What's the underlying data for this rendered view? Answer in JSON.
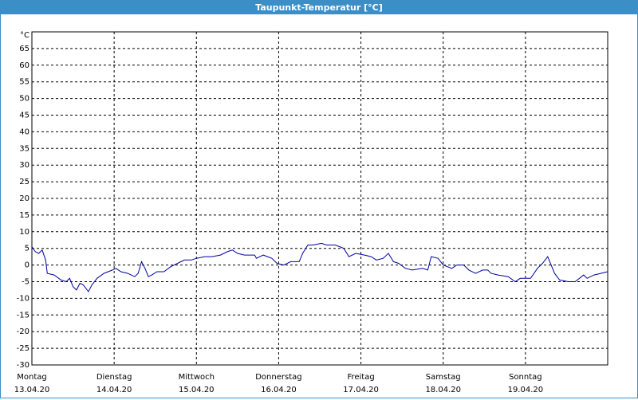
{
  "chart_data": {
    "type": "line",
    "title": "Taupunkt-Temperatur [°C]",
    "y_unit": "°C",
    "xlim": [
      0,
      168
    ],
    "xticks": [
      {
        "value": 0,
        "label": "Montag"
      },
      {
        "value": 24,
        "label": "Dienstag"
      },
      {
        "value": 48,
        "label": "Mittwoch"
      },
      {
        "value": 72,
        "label": "Donnerstag"
      },
      {
        "value": 96,
        "label": "Freitag"
      },
      {
        "value": 120,
        "label": "Samstag"
      },
      {
        "value": 144,
        "label": "Sonntag"
      }
    ],
    "xtick_dates": [
      "13.04.20",
      "14.04.20",
      "15.04.20",
      "16.04.20",
      "17.04.20",
      "18.04.20",
      "19.04.20"
    ],
    "ylim": [
      -30,
      70
    ],
    "yticks": [
      -30,
      -25,
      -20,
      -15,
      -10,
      -5,
      0,
      5,
      10,
      15,
      20,
      25,
      30,
      35,
      40,
      45,
      50,
      55,
      60,
      65
    ],
    "grid": true,
    "series": [
      {
        "name": "Taupunkt",
        "color": "#0000a0",
        "x": [
          0,
          1,
          2,
          3,
          4,
          4.5,
          6.5,
          8.5,
          10,
          11,
          12,
          13,
          14,
          15,
          16.5,
          17.5,
          19,
          21,
          23.5,
          24.5,
          26,
          28,
          30,
          31,
          32,
          33,
          34,
          35,
          36.5,
          38.5,
          40.5,
          42.5,
          44.5,
          46.5,
          48,
          50.5,
          52.5,
          55,
          57,
          58.5,
          60,
          62,
          65,
          65.5,
          67.5,
          70,
          71.5,
          73.5,
          75.5,
          78,
          79,
          80.5,
          82,
          84.5,
          86,
          88.5,
          91,
          92.5,
          94.5,
          97,
          99,
          100.5,
          102.5,
          104,
          105.5,
          107,
          109,
          111,
          114,
          115.5,
          116.5,
          118.5,
          120,
          122.5,
          124,
          126,
          127.5,
          129.5,
          131.5,
          133,
          134,
          136,
          139,
          141,
          142.5,
          145.5,
          147.5,
          149,
          150.5,
          152.5,
          154,
          156.5,
          158.5,
          161,
          162,
          164,
          166,
          168
        ],
        "values": [
          5.5,
          4,
          3.5,
          4.5,
          1.5,
          -2.5,
          -3,
          -4.5,
          -5,
          -4,
          -6.5,
          -7.5,
          -5.5,
          -6,
          -8,
          -6,
          -4,
          -2.5,
          -1.5,
          -1,
          -2,
          -2.5,
          -3.5,
          -2.5,
          1,
          -1,
          -3.5,
          -3,
          -2,
          -2,
          -0.5,
          0.5,
          1.5,
          1.5,
          2,
          2.5,
          2.5,
          3,
          4,
          4.5,
          3.5,
          3,
          3,
          2,
          3,
          2,
          0.5,
          0,
          1,
          1,
          3.5,
          6,
          6,
          6.5,
          6,
          6,
          5,
          2.5,
          3.5,
          3,
          2.5,
          1.5,
          2,
          3.5,
          1,
          0.5,
          -1,
          -1.5,
          -1,
          -1.5,
          2.5,
          2,
          0,
          -1,
          0,
          0,
          -1.5,
          -2.5,
          -1.5,
          -1.5,
          -2.5,
          -3,
          -3.5,
          -5,
          -4,
          -4,
          -1,
          0.5,
          2.5,
          -2.5,
          -4.5,
          -5,
          -5,
          -3,
          -4,
          -3,
          -2.5,
          -2
        ]
      }
    ]
  }
}
